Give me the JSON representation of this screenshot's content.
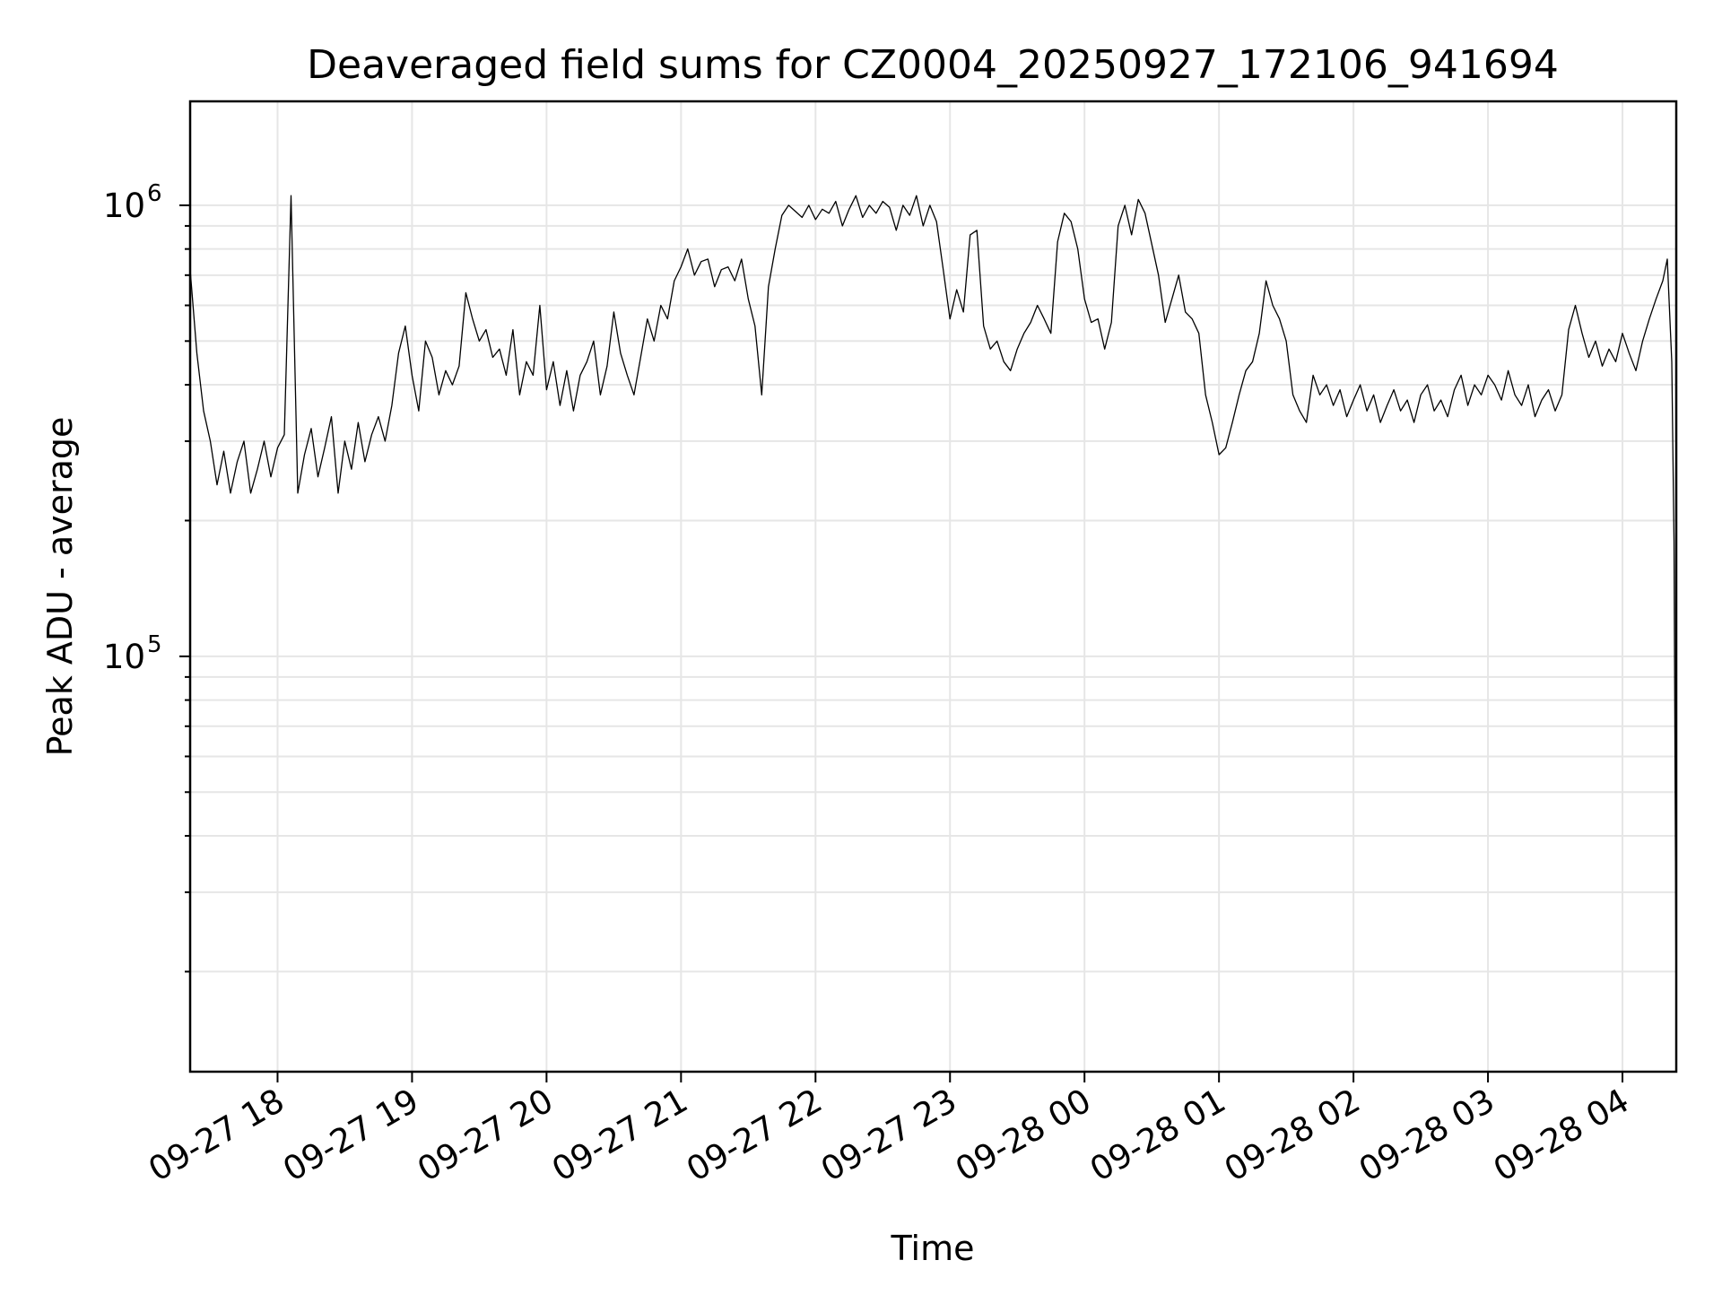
{
  "chart_data": {
    "type": "line",
    "title": "Deaveraged field sums for CZ0004_20250927_172106_941694",
    "xlabel": "Time",
    "ylabel": "Peak ADU - average",
    "yscale": "log",
    "grid": true,
    "xlim": [
      "2025-09-27 17:21",
      "2025-09-28 04:24"
    ],
    "ylim": [
      12000,
      1700000
    ],
    "x_ticks": [
      {
        "value": "2025-09-27 18:00",
        "label": "09-27 18"
      },
      {
        "value": "2025-09-27 19:00",
        "label": "09-27 19"
      },
      {
        "value": "2025-09-27 20:00",
        "label": "09-27 20"
      },
      {
        "value": "2025-09-27 21:00",
        "label": "09-27 21"
      },
      {
        "value": "2025-09-27 22:00",
        "label": "09-27 22"
      },
      {
        "value": "2025-09-27 23:00",
        "label": "09-27 23"
      },
      {
        "value": "2025-09-28 00:00",
        "label": "09-28 00"
      },
      {
        "value": "2025-09-28 01:00",
        "label": "09-28 01"
      },
      {
        "value": "2025-09-28 02:00",
        "label": "09-28 02"
      },
      {
        "value": "2025-09-28 03:00",
        "label": "09-28 03"
      },
      {
        "value": "2025-09-28 04:00",
        "label": "09-28 04"
      }
    ],
    "y_ticks": [
      {
        "value": 100000,
        "base": "10",
        "exp": "5"
      },
      {
        "value": 1000000,
        "base": "10",
        "exp": "6"
      }
    ],
    "series_color": "#000000",
    "x": [
      "2025-09-27 17:21",
      "2025-09-27 17:24",
      "2025-09-27 17:27",
      "2025-09-27 17:30",
      "2025-09-27 17:33",
      "2025-09-27 17:36",
      "2025-09-27 17:39",
      "2025-09-27 17:42",
      "2025-09-27 17:45",
      "2025-09-27 17:48",
      "2025-09-27 17:51",
      "2025-09-27 17:54",
      "2025-09-27 17:57",
      "2025-09-27 18:00",
      "2025-09-27 18:03",
      "2025-09-27 18:06",
      "2025-09-27 18:09",
      "2025-09-27 18:12",
      "2025-09-27 18:15",
      "2025-09-27 18:18",
      "2025-09-27 18:21",
      "2025-09-27 18:24",
      "2025-09-27 18:27",
      "2025-09-27 18:30",
      "2025-09-27 18:33",
      "2025-09-27 18:36",
      "2025-09-27 18:39",
      "2025-09-27 18:42",
      "2025-09-27 18:45",
      "2025-09-27 18:48",
      "2025-09-27 18:51",
      "2025-09-27 18:54",
      "2025-09-27 18:57",
      "2025-09-27 19:00",
      "2025-09-27 19:03",
      "2025-09-27 19:06",
      "2025-09-27 19:09",
      "2025-09-27 19:12",
      "2025-09-27 19:15",
      "2025-09-27 19:18",
      "2025-09-27 19:21",
      "2025-09-27 19:24",
      "2025-09-27 19:27",
      "2025-09-27 19:30",
      "2025-09-27 19:33",
      "2025-09-27 19:36",
      "2025-09-27 19:39",
      "2025-09-27 19:42",
      "2025-09-27 19:45",
      "2025-09-27 19:48",
      "2025-09-27 19:51",
      "2025-09-27 19:54",
      "2025-09-27 19:57",
      "2025-09-27 20:00",
      "2025-09-27 20:03",
      "2025-09-27 20:06",
      "2025-09-27 20:09",
      "2025-09-27 20:12",
      "2025-09-27 20:15",
      "2025-09-27 20:18",
      "2025-09-27 20:21",
      "2025-09-27 20:24",
      "2025-09-27 20:27",
      "2025-09-27 20:30",
      "2025-09-27 20:33",
      "2025-09-27 20:36",
      "2025-09-27 20:39",
      "2025-09-27 20:42",
      "2025-09-27 20:45",
      "2025-09-27 20:48",
      "2025-09-27 20:51",
      "2025-09-27 20:54",
      "2025-09-27 20:57",
      "2025-09-27 21:00",
      "2025-09-27 21:03",
      "2025-09-27 21:06",
      "2025-09-27 21:09",
      "2025-09-27 21:12",
      "2025-09-27 21:15",
      "2025-09-27 21:18",
      "2025-09-27 21:21",
      "2025-09-27 21:24",
      "2025-09-27 21:27",
      "2025-09-27 21:30",
      "2025-09-27 21:33",
      "2025-09-27 21:36",
      "2025-09-27 21:39",
      "2025-09-27 21:42",
      "2025-09-27 21:45",
      "2025-09-27 21:48",
      "2025-09-27 21:51",
      "2025-09-27 21:54",
      "2025-09-27 21:57",
      "2025-09-27 22:00",
      "2025-09-27 22:03",
      "2025-09-27 22:06",
      "2025-09-27 22:09",
      "2025-09-27 22:12",
      "2025-09-27 22:15",
      "2025-09-27 22:18",
      "2025-09-27 22:21",
      "2025-09-27 22:24",
      "2025-09-27 22:27",
      "2025-09-27 22:30",
      "2025-09-27 22:33",
      "2025-09-27 22:36",
      "2025-09-27 22:39",
      "2025-09-27 22:42",
      "2025-09-27 22:45",
      "2025-09-27 22:48",
      "2025-09-27 22:51",
      "2025-09-27 22:54",
      "2025-09-27 22:57",
      "2025-09-27 23:00",
      "2025-09-27 23:03",
      "2025-09-27 23:06",
      "2025-09-27 23:09",
      "2025-09-27 23:12",
      "2025-09-27 23:15",
      "2025-09-27 23:18",
      "2025-09-27 23:21",
      "2025-09-27 23:24",
      "2025-09-27 23:27",
      "2025-09-27 23:30",
      "2025-09-27 23:33",
      "2025-09-27 23:36",
      "2025-09-27 23:39",
      "2025-09-27 23:42",
      "2025-09-27 23:45",
      "2025-09-27 23:48",
      "2025-09-27 23:51",
      "2025-09-27 23:54",
      "2025-09-27 23:57",
      "2025-09-28 00:00",
      "2025-09-28 00:03",
      "2025-09-28 00:06",
      "2025-09-28 00:09",
      "2025-09-28 00:12",
      "2025-09-28 00:15",
      "2025-09-28 00:18",
      "2025-09-28 00:21",
      "2025-09-28 00:24",
      "2025-09-28 00:27",
      "2025-09-28 00:30",
      "2025-09-28 00:33",
      "2025-09-28 00:36",
      "2025-09-28 00:39",
      "2025-09-28 00:42",
      "2025-09-28 00:45",
      "2025-09-28 00:48",
      "2025-09-28 00:51",
      "2025-09-28 00:54",
      "2025-09-28 00:57",
      "2025-09-28 01:00",
      "2025-09-28 01:03",
      "2025-09-28 01:06",
      "2025-09-28 01:09",
      "2025-09-28 01:12",
      "2025-09-28 01:15",
      "2025-09-28 01:18",
      "2025-09-28 01:21",
      "2025-09-28 01:24",
      "2025-09-28 01:27",
      "2025-09-28 01:30",
      "2025-09-28 01:33",
      "2025-09-28 01:36",
      "2025-09-28 01:39",
      "2025-09-28 01:42",
      "2025-09-28 01:45",
      "2025-09-28 01:48",
      "2025-09-28 01:51",
      "2025-09-28 01:54",
      "2025-09-28 01:57",
      "2025-09-28 02:00",
      "2025-09-28 02:03",
      "2025-09-28 02:06",
      "2025-09-28 02:09",
      "2025-09-28 02:12",
      "2025-09-28 02:15",
      "2025-09-28 02:18",
      "2025-09-28 02:21",
      "2025-09-28 02:24",
      "2025-09-28 02:27",
      "2025-09-28 02:30",
      "2025-09-28 02:33",
      "2025-09-28 02:36",
      "2025-09-28 02:39",
      "2025-09-28 02:42",
      "2025-09-28 02:45",
      "2025-09-28 02:48",
      "2025-09-28 02:51",
      "2025-09-28 02:54",
      "2025-09-28 02:57",
      "2025-09-28 03:00",
      "2025-09-28 03:03",
      "2025-09-28 03:06",
      "2025-09-28 03:09",
      "2025-09-28 03:12",
      "2025-09-28 03:15",
      "2025-09-28 03:18",
      "2025-09-28 03:21",
      "2025-09-28 03:24",
      "2025-09-28 03:27",
      "2025-09-28 03:30",
      "2025-09-28 03:33",
      "2025-09-28 03:36",
      "2025-09-28 03:39",
      "2025-09-28 03:42",
      "2025-09-28 03:45",
      "2025-09-28 03:48",
      "2025-09-28 03:51",
      "2025-09-28 03:54",
      "2025-09-28 03:57",
      "2025-09-28 04:00",
      "2025-09-28 04:03",
      "2025-09-28 04:06",
      "2025-09-28 04:09",
      "2025-09-28 04:12",
      "2025-09-28 04:15",
      "2025-09-28 04:18",
      "2025-09-28 04:20",
      "2025-09-28 04:22",
      "2025-09-28 04:23",
      "2025-09-28 04:24"
    ],
    "y": [
      720000,
      470000,
      350000,
      300000,
      240000,
      285000,
      230000,
      270000,
      300000,
      230000,
      260000,
      300000,
      250000,
      290000,
      310000,
      1050000,
      230000,
      280000,
      320000,
      250000,
      290000,
      340000,
      230000,
      300000,
      260000,
      330000,
      270000,
      310000,
      340000,
      300000,
      360000,
      470000,
      540000,
      420000,
      350000,
      500000,
      460000,
      380000,
      430000,
      400000,
      440000,
      640000,
      560000,
      500000,
      530000,
      460000,
      480000,
      420000,
      530000,
      380000,
      450000,
      420000,
      600000,
      390000,
      450000,
      360000,
      430000,
      350000,
      420000,
      450000,
      500000,
      380000,
      440000,
      580000,
      470000,
      420000,
      380000,
      460000,
      560000,
      500000,
      600000,
      560000,
      680000,
      730000,
      800000,
      700000,
      750000,
      760000,
      660000,
      720000,
      730000,
      680000,
      760000,
      620000,
      540000,
      380000,
      660000,
      800000,
      950000,
      1000000,
      970000,
      940000,
      1000000,
      930000,
      980000,
      960000,
      1020000,
      900000,
      980000,
      1050000,
      940000,
      1000000,
      960000,
      1020000,
      990000,
      880000,
      1000000,
      950000,
      1050000,
      900000,
      1000000,
      920000,
      720000,
      560000,
      650000,
      580000,
      860000,
      880000,
      540000,
      480000,
      500000,
      450000,
      430000,
      480000,
      520000,
      550000,
      600000,
      560000,
      520000,
      830000,
      960000,
      920000,
      800000,
      620000,
      550000,
      560000,
      480000,
      550000,
      900000,
      1000000,
      860000,
      1030000,
      960000,
      820000,
      700000,
      550000,
      620000,
      700000,
      580000,
      560000,
      520000,
      380000,
      330000,
      280000,
      290000,
      330000,
      380000,
      430000,
      450000,
      520000,
      680000,
      600000,
      560000,
      500000,
      380000,
      350000,
      330000,
      420000,
      380000,
      400000,
      360000,
      390000,
      340000,
      370000,
      400000,
      350000,
      380000,
      330000,
      360000,
      390000,
      350000,
      370000,
      330000,
      380000,
      400000,
      350000,
      370000,
      340000,
      390000,
      420000,
      360000,
      400000,
      380000,
      420000,
      400000,
      370000,
      430000,
      380000,
      360000,
      400000,
      340000,
      370000,
      390000,
      350000,
      380000,
      530000,
      600000,
      520000,
      460000,
      500000,
      440000,
      480000,
      450000,
      520000,
      470000,
      430000,
      500000,
      560000,
      620000,
      680000,
      760000,
      450000,
      180000,
      15000
    ]
  }
}
